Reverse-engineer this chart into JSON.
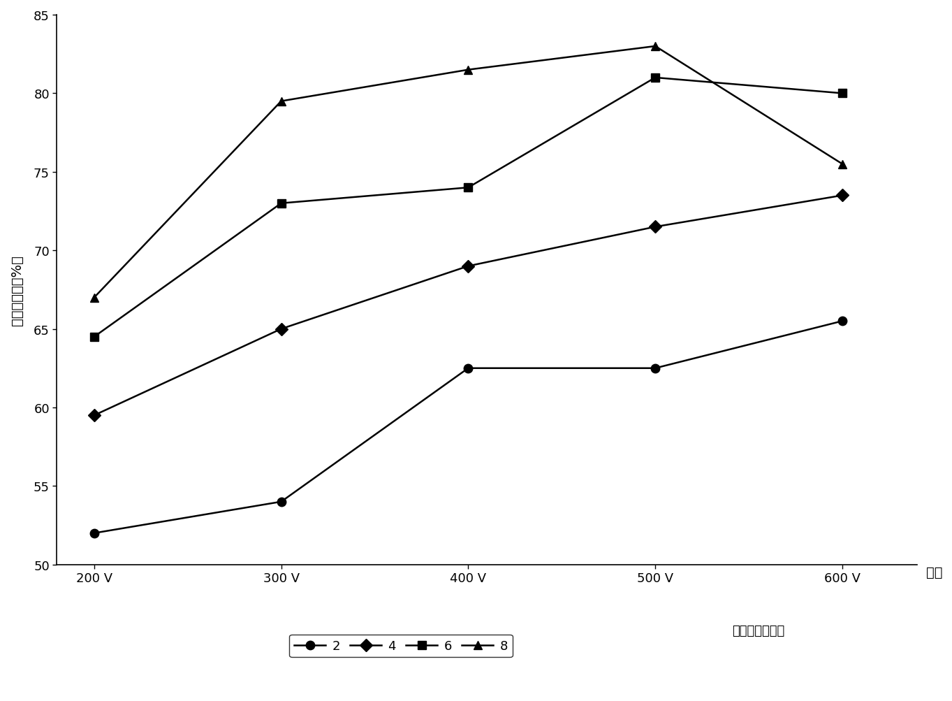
{
  "x_labels": [
    "200 V",
    "300 V",
    "400 V",
    "500 V",
    "600 V"
  ],
  "x_values": [
    200,
    300,
    400,
    500,
    600
  ],
  "series": [
    {
      "label": "2",
      "values": [
        52.0,
        54.0,
        62.5,
        62.5,
        65.5
      ],
      "marker": "o",
      "color": "#000000"
    },
    {
      "label": "4",
      "values": [
        59.5,
        65.0,
        69.0,
        71.5,
        73.5
      ],
      "marker": "D",
      "color": "#000000"
    },
    {
      "label": "6",
      "values": [
        64.5,
        73.0,
        74.0,
        81.0,
        80.0
      ],
      "marker": "s",
      "color": "#000000"
    },
    {
      "label": "8",
      "values": [
        67.0,
        79.5,
        81.5,
        83.0,
        75.5
      ],
      "marker": "^",
      "color": "#000000"
    }
  ],
  "ylabel": "锄去除效率（%）",
  "xlabel_suffix": "电压",
  "legend_suffix": "修复时间（天）",
  "ylim": [
    50,
    85
  ],
  "yticks": [
    50,
    55,
    60,
    65,
    70,
    75,
    80,
    85
  ],
  "background_color": "#ffffff",
  "title_fontsize": 14,
  "label_fontsize": 14,
  "tick_fontsize": 13,
  "legend_fontsize": 13,
  "linewidth": 1.8,
  "markersize": 9
}
